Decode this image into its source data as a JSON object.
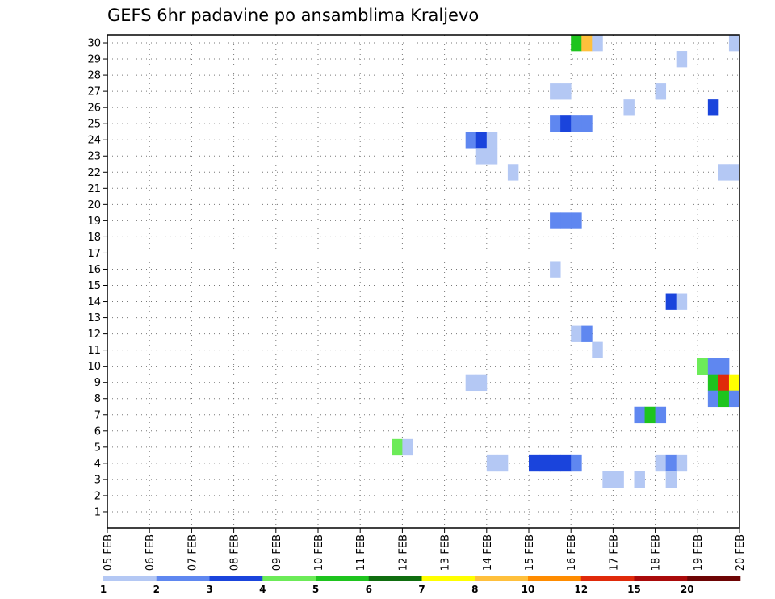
{
  "chart_data": {
    "type": "heatmap",
    "title": "GEFS 6hr padavine po ansamblima Kraljevo",
    "x_dates": [
      "05 FEB",
      "06 FEB",
      "07 FEB",
      "08 FEB",
      "09 FEB",
      "10 FEB",
      "11 FEB",
      "12 FEB",
      "13 FEB",
      "14 FEB",
      "15 FEB",
      "16 FEB",
      "17 FEB",
      "18 FEB",
      "19 FEB",
      "20 FEB"
    ],
    "steps_per_day": 4,
    "y_members": [
      1,
      2,
      3,
      4,
      5,
      6,
      7,
      8,
      9,
      10,
      11,
      12,
      13,
      14,
      15,
      16,
      17,
      18,
      19,
      20,
      21,
      22,
      23,
      24,
      25,
      26,
      27,
      28,
      29,
      30
    ],
    "ylim": [
      0,
      30.5
    ],
    "grid": true,
    "color_scale": {
      "labels": [
        "1",
        "2",
        "3",
        "4",
        "5",
        "6",
        "7",
        "8",
        "10",
        "12",
        "15",
        "20"
      ],
      "colors": [
        "#b4c8f4",
        "#5f87f0",
        "#1a44dc",
        "#6ceb58",
        "#1ec41e",
        "#0f6e0f",
        "#ffff00",
        "#ffc03c",
        "#ff8c00",
        "#e02a0a",
        "#aa0a0a",
        "#6e0505"
      ]
    },
    "cells": [
      {
        "member": 30,
        "x": 44,
        "value": 5
      },
      {
        "member": 30,
        "x": 45,
        "value": 8
      },
      {
        "member": 30,
        "x": 46,
        "value": 1
      },
      {
        "member": 30,
        "x": 59,
        "value": 1
      },
      {
        "member": 29,
        "x": 54,
        "value": 1
      },
      {
        "member": 27,
        "x": 42,
        "value": 1
      },
      {
        "member": 27,
        "x": 43,
        "value": 1
      },
      {
        "member": 27,
        "x": 52,
        "value": 1
      },
      {
        "member": 26,
        "x": 49,
        "value": 1
      },
      {
        "member": 26,
        "x": 57,
        "value": 3
      },
      {
        "member": 25,
        "x": 42,
        "value": 2
      },
      {
        "member": 25,
        "x": 43,
        "value": 3
      },
      {
        "member": 25,
        "x": 44,
        "value": 2
      },
      {
        "member": 25,
        "x": 45,
        "value": 2
      },
      {
        "member": 24,
        "x": 34,
        "value": 2
      },
      {
        "member": 24,
        "x": 35,
        "value": 3
      },
      {
        "member": 24,
        "x": 36,
        "value": 1
      },
      {
        "member": 23,
        "x": 35,
        "value": 1
      },
      {
        "member": 23,
        "x": 36,
        "value": 1
      },
      {
        "member": 22,
        "x": 38,
        "value": 1
      },
      {
        "member": 22,
        "x": 58,
        "value": 1
      },
      {
        "member": 22,
        "x": 59,
        "value": 1
      },
      {
        "member": 19,
        "x": 42,
        "value": 2
      },
      {
        "member": 19,
        "x": 43,
        "value": 2
      },
      {
        "member": 19,
        "x": 44,
        "value": 2
      },
      {
        "member": 16,
        "x": 42,
        "value": 1
      },
      {
        "member": 14,
        "x": 53,
        "value": 3
      },
      {
        "member": 14,
        "x": 54,
        "value": 1
      },
      {
        "member": 12,
        "x": 44,
        "value": 1
      },
      {
        "member": 12,
        "x": 45,
        "value": 2
      },
      {
        "member": 11,
        "x": 46,
        "value": 1
      },
      {
        "member": 10,
        "x": 56,
        "value": 4
      },
      {
        "member": 10,
        "x": 57,
        "value": 2
      },
      {
        "member": 10,
        "x": 58,
        "value": 2
      },
      {
        "member": 9,
        "x": 34,
        "value": 1
      },
      {
        "member": 9,
        "x": 35,
        "value": 1
      },
      {
        "member": 9,
        "x": 57,
        "value": 5
      },
      {
        "member": 9,
        "x": 58,
        "value": 12
      },
      {
        "member": 9,
        "x": 59,
        "value": 7
      },
      {
        "member": 8,
        "x": 57,
        "value": 2
      },
      {
        "member": 8,
        "x": 58,
        "value": 5
      },
      {
        "member": 8,
        "x": 59,
        "value": 2
      },
      {
        "member": 7,
        "x": 50,
        "value": 2
      },
      {
        "member": 7,
        "x": 51,
        "value": 5
      },
      {
        "member": 7,
        "x": 52,
        "value": 2
      },
      {
        "member": 5,
        "x": 27,
        "value": 4
      },
      {
        "member": 5,
        "x": 28,
        "value": 1
      },
      {
        "member": 4,
        "x": 36,
        "value": 1
      },
      {
        "member": 4,
        "x": 37,
        "value": 1
      },
      {
        "member": 4,
        "x": 40,
        "value": 3
      },
      {
        "member": 4,
        "x": 41,
        "value": 3
      },
      {
        "member": 4,
        "x": 42,
        "value": 3
      },
      {
        "member": 4,
        "x": 43,
        "value": 3
      },
      {
        "member": 4,
        "x": 44,
        "value": 2
      },
      {
        "member": 4,
        "x": 52,
        "value": 1
      },
      {
        "member": 4,
        "x": 53,
        "value": 2
      },
      {
        "member": 4,
        "x": 54,
        "value": 1
      },
      {
        "member": 3,
        "x": 47,
        "value": 1
      },
      {
        "member": 3,
        "x": 48,
        "value": 1
      },
      {
        "member": 3,
        "x": 50,
        "value": 1
      },
      {
        "member": 3,
        "x": 53,
        "value": 1
      }
    ]
  }
}
